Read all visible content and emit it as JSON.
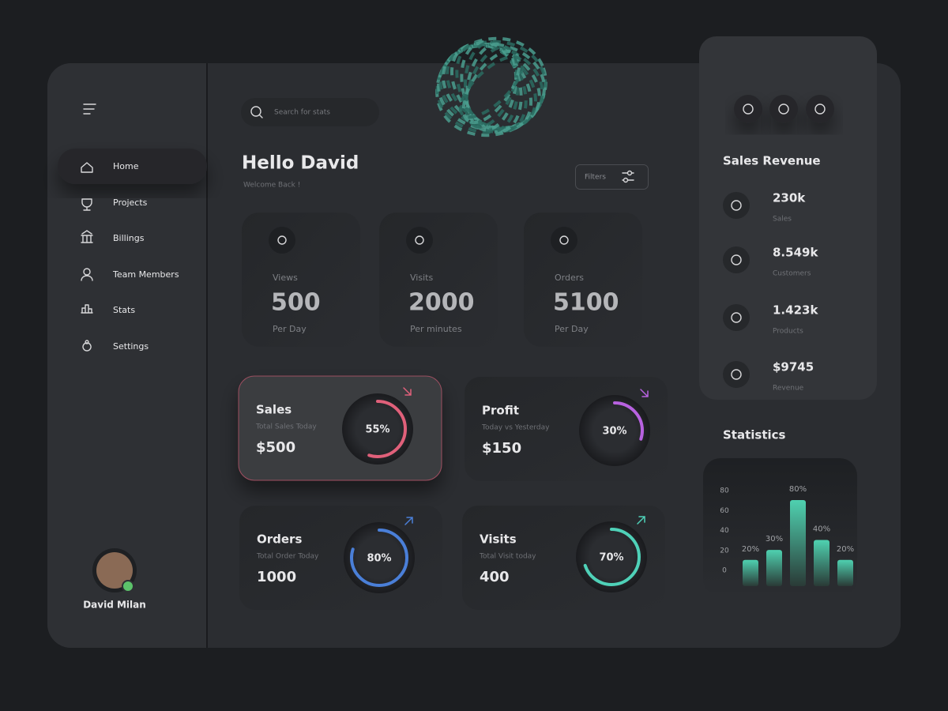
{
  "sidebar": {
    "nav": [
      "Home",
      "Projects",
      "Billings",
      "Team Members",
      "Stats",
      "Settings"
    ],
    "user": "David Milan"
  },
  "search": {
    "placeholder": "Search for stats"
  },
  "header": {
    "title": "Hello David",
    "subtitle": "Welcome Back !",
    "filter": "Filters"
  },
  "stats": [
    {
      "label": "Views",
      "value": 500,
      "unit": "Per Day"
    },
    {
      "label": "Visits",
      "value": 2000,
      "unit": "Per minutes"
    },
    {
      "label": "Orders",
      "value": 5100,
      "unit": "Per Day"
    }
  ],
  "kpis": [
    {
      "title": "Sales",
      "subtitle": "Total Sales Today",
      "amount": "$500",
      "percent": {
        "value": 55,
        "label": "55%"
      },
      "color": "#e0607a"
    },
    {
      "title": "Profit",
      "subtitle": "Today vs Yesterday",
      "amount": "$150",
      "percent": {
        "value": 30,
        "label": "30%"
      },
      "color": "#b862e0"
    },
    {
      "title": "Orders",
      "subtitle": "Total Order Today",
      "amount": 1000,
      "percent": {
        "value": 80,
        "label": "80%"
      },
      "color": "#4a7fd8"
    },
    {
      "title": "Visits",
      "subtitle": "Total Visit today",
      "amount": 400,
      "percent": {
        "value": 70,
        "label": "70%"
      },
      "color": "#4fd1b8"
    }
  ],
  "revenue": {
    "title": "Sales Revenue",
    "items": [
      {
        "value": "230k",
        "label": "Sales"
      },
      {
        "value": "8.549k",
        "label": "Customers"
      },
      {
        "value": "1.423k",
        "label": "Products"
      },
      {
        "value": "$9745",
        "label": "Revenue"
      }
    ]
  },
  "statistics": {
    "title": "Statistics",
    "chart_data": {
      "type": "bar",
      "values": [
        20,
        30,
        80,
        40,
        20
      ],
      "value_labels": [
        "20%",
        "30%",
        "80%",
        "40%",
        "20%"
      ],
      "color": "#45c4a6",
      "ylim": [
        0,
        80
      ],
      "yticks": [
        0,
        20,
        40,
        60,
        80
      ]
    }
  }
}
